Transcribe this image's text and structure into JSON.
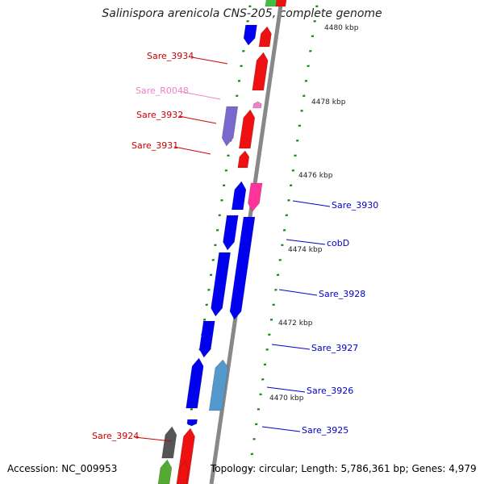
{
  "title": "Salinispora arenicola CNS-205, complete genome",
  "footer": {
    "accession": "Accession: NC_009953",
    "summary": "Topology: circular; Length: 5,786,361 bp; Genes: 4,979"
  },
  "colors": {
    "backbone": "#888888",
    "tick": "#138a13",
    "label_left": "#cc0000",
    "label_right": "#0000cc",
    "label_rrna": "#ee82c8"
  },
  "kbp_markers": [
    "4480 kbp",
    "4478 kbp",
    "4476 kbp",
    "4474 kbp",
    "4472 kbp",
    "4470 kbp"
  ],
  "left_labels": [
    "Sare_3934",
    "Sare_R0048",
    "Sare_3932",
    "Sare_3931",
    "Sare_3924"
  ],
  "right_labels": [
    "Sare_3930",
    "cobD",
    "Sare_3928",
    "Sare_3927",
    "Sare_3926",
    "Sare_3925"
  ]
}
